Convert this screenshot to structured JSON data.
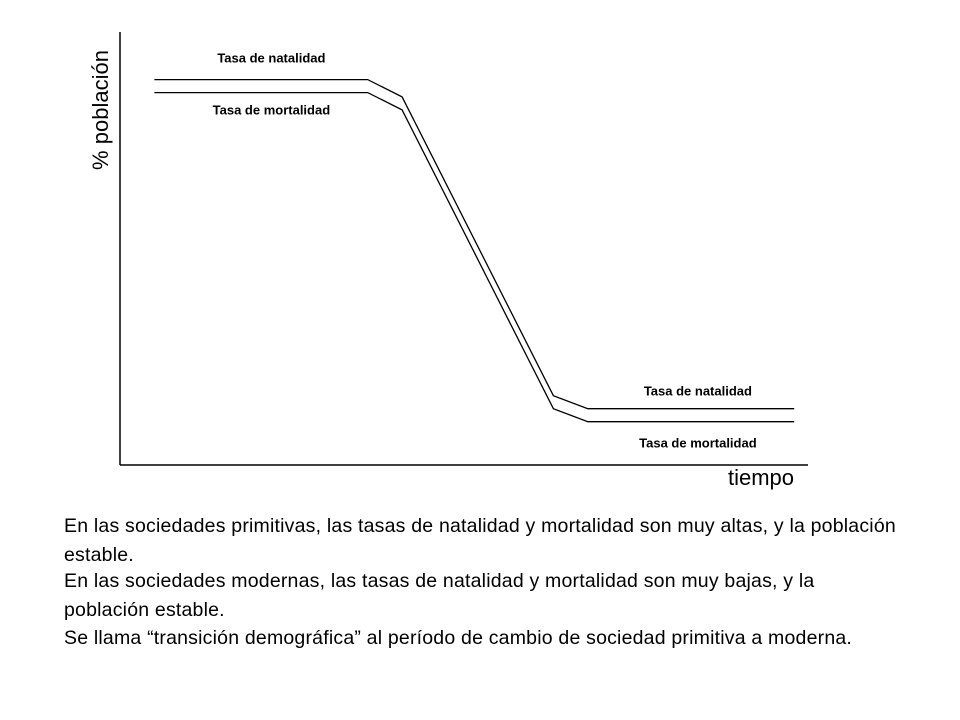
{
  "chart_data": {
    "type": "line",
    "title": "",
    "xlabel": "tiempo",
    "ylabel": "% población",
    "xlim": [
      0,
      100
    ],
    "ylim": [
      0,
      100
    ],
    "grid": false,
    "legend": "none",
    "series": [
      {
        "name": "Tasa de natalidad",
        "color": "#000000",
        "x": [
          5,
          36,
          41,
          63,
          68,
          98
        ],
        "y": [
          89,
          89,
          85,
          16,
          13,
          13
        ]
      },
      {
        "name": "Tasa de mortalidad",
        "color": "#000000",
        "x": [
          5,
          36,
          41,
          63,
          68,
          98
        ],
        "y": [
          86,
          86,
          82,
          13,
          10,
          10
        ]
      }
    ],
    "annotations": [
      {
        "text": "Tasa de natalidad",
        "x": 22,
        "y": 93
      },
      {
        "text": "Tasa de mortalidad",
        "x": 22,
        "y": 81
      },
      {
        "text": "Tasa de natalidad",
        "x": 84,
        "y": 16
      },
      {
        "text": "Tasa de mortalidad",
        "x": 84,
        "y": 4
      }
    ]
  },
  "text": {
    "p1": "En las sociedades primitivas, las tasas de natalidad y mortalidad son muy altas, y la población estable.",
    "p2": "En las sociedades modernas, las tasas de natalidad y mortalidad son muy bajas, y la población estable.",
    "p3": "Se llama “transición demográfica” al período de cambio de sociedad primitiva a moderna."
  }
}
